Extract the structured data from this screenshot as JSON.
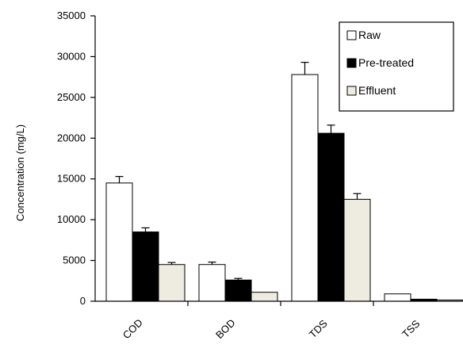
{
  "chart_data": {
    "type": "bar",
    "categories": [
      "COD",
      "BOD",
      "TDS",
      "TSS"
    ],
    "series": [
      {
        "name": "Raw",
        "color": "#ffffff",
        "values": [
          14500,
          4500,
          27800,
          900
        ],
        "errors": [
          800,
          300,
          1500,
          0
        ]
      },
      {
        "name": "Pre-treated",
        "color": "#000000",
        "values": [
          8500,
          2600,
          20600,
          250
        ],
        "errors": [
          500,
          200,
          1000,
          0
        ]
      },
      {
        "name": "Effluent",
        "color": "#eeece1",
        "values": [
          4500,
          1100,
          12500,
          150
        ],
        "errors": [
          250,
          0,
          700,
          0
        ]
      }
    ],
    "title": "",
    "xlabel": "",
    "ylabel": "Concentration (mg/L)",
    "ylim": [
      0,
      35000
    ],
    "yticks": [
      "0",
      "5000",
      "10000",
      "15000",
      "20000",
      "25000",
      "30000",
      "35000"
    ],
    "legend_position": "top-right",
    "grid": false
  }
}
